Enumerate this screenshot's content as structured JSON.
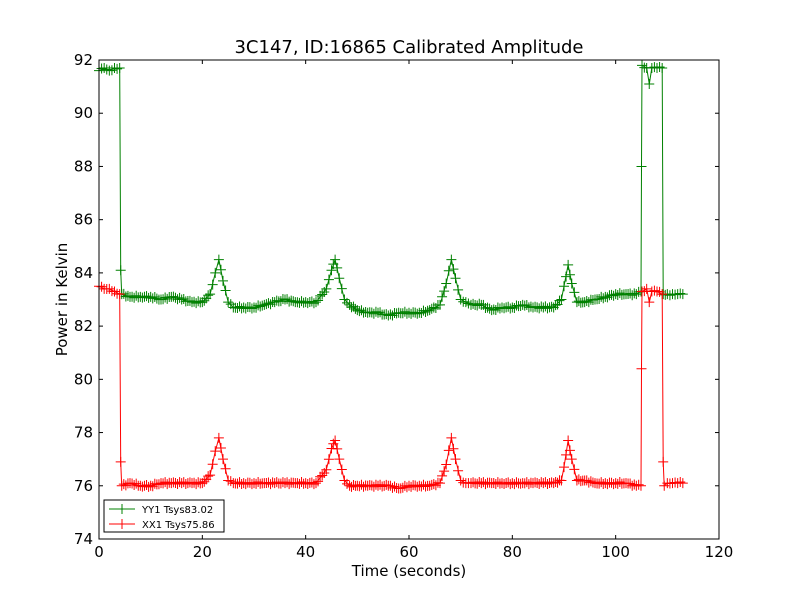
{
  "chart_data": {
    "type": "line",
    "title": "3C147, ID:16865 Calibrated Amplitude",
    "xlabel": "Time (seconds)",
    "ylabel": "Power in Kelvin",
    "xlim": [
      0,
      120
    ],
    "ylim": [
      74,
      92
    ],
    "x_ticks": [
      "0",
      "20",
      "40",
      "60",
      "80",
      "100",
      "120"
    ],
    "y_ticks": [
      "74",
      "76",
      "78",
      "80",
      "82",
      "84",
      "86",
      "88",
      "90",
      "92"
    ],
    "grid": false,
    "legend_position": "lower-left",
    "marker": "plus",
    "series": [
      {
        "name": "YY1 Tsys83.02",
        "color": "#008000",
        "points": [
          [
            0.0,
            91.6
          ],
          [
            1.0,
            91.7
          ],
          [
            2.0,
            91.6
          ],
          [
            3.0,
            91.7
          ],
          [
            4.0,
            91.7
          ],
          [
            4.2,
            84.1
          ],
          [
            4.4,
            83.2
          ],
          [
            6,
            83.1
          ],
          [
            8,
            83.1
          ],
          [
            10,
            83.1
          ],
          [
            12,
            83.0
          ],
          [
            14,
            83.1
          ],
          [
            16,
            83.0
          ],
          [
            18,
            82.9
          ],
          [
            20,
            82.9
          ],
          [
            21.5,
            83.2
          ],
          [
            22.5,
            84.0
          ],
          [
            23.2,
            84.5
          ],
          [
            24.0,
            83.7
          ],
          [
            25.0,
            82.9
          ],
          [
            26.0,
            82.7
          ],
          [
            28,
            82.7
          ],
          [
            30,
            82.7
          ],
          [
            32,
            82.8
          ],
          [
            34,
            82.9
          ],
          [
            36,
            83.0
          ],
          [
            38,
            82.9
          ],
          [
            40,
            82.9
          ],
          [
            42,
            82.9
          ],
          [
            44,
            83.4
          ],
          [
            45.0,
            84.1
          ],
          [
            45.7,
            84.5
          ],
          [
            46.5,
            83.8
          ],
          [
            47.5,
            83.0
          ],
          [
            48.5,
            82.8
          ],
          [
            50,
            82.6
          ],
          [
            52,
            82.5
          ],
          [
            54,
            82.5
          ],
          [
            56,
            82.4
          ],
          [
            58,
            82.5
          ],
          [
            60,
            82.5
          ],
          [
            62,
            82.5
          ],
          [
            64,
            82.6
          ],
          [
            66,
            82.8
          ],
          [
            67.2,
            83.6
          ],
          [
            68.2,
            84.5
          ],
          [
            69.0,
            83.8
          ],
          [
            70.0,
            83.0
          ],
          [
            71,
            82.9
          ],
          [
            72,
            82.8
          ],
          [
            74,
            82.8
          ],
          [
            76,
            82.6
          ],
          [
            78,
            82.7
          ],
          [
            80,
            82.7
          ],
          [
            82,
            82.8
          ],
          [
            84,
            82.7
          ],
          [
            86,
            82.7
          ],
          [
            88,
            82.7
          ],
          [
            89.5,
            83.0
          ],
          [
            90.0,
            83.5
          ],
          [
            90.8,
            84.3
          ],
          [
            91.5,
            83.6
          ],
          [
            92.5,
            82.9
          ],
          [
            94,
            82.9
          ],
          [
            96,
            83.0
          ],
          [
            98,
            83.1
          ],
          [
            100,
            83.2
          ],
          [
            102,
            83.2
          ],
          [
            104,
            83.2
          ],
          [
            104.9,
            83.3
          ],
          [
            105.0,
            88.0
          ],
          [
            105.1,
            91.8
          ],
          [
            106,
            91.7
          ],
          [
            106.5,
            91.1
          ],
          [
            107,
            91.7
          ],
          [
            108,
            91.7
          ],
          [
            109,
            91.7
          ],
          [
            109.2,
            83.2
          ],
          [
            110,
            83.2
          ],
          [
            111,
            83.2
          ],
          [
            112,
            83.2
          ],
          [
            113,
            83.2
          ]
        ]
      },
      {
        "name": "XX1 Tsys75.86",
        "color": "#ff0000",
        "points": [
          [
            0.0,
            83.5
          ],
          [
            1.0,
            83.4
          ],
          [
            2.0,
            83.4
          ],
          [
            3.0,
            83.3
          ],
          [
            4.0,
            83.2
          ],
          [
            4.2,
            76.9
          ],
          [
            4.4,
            76.0
          ],
          [
            6,
            76.1
          ],
          [
            8,
            76.0
          ],
          [
            10,
            76.0
          ],
          [
            12,
            76.1
          ],
          [
            14,
            76.1
          ],
          [
            16,
            76.1
          ],
          [
            18,
            76.1
          ],
          [
            20,
            76.1
          ],
          [
            21.5,
            76.4
          ],
          [
            22.5,
            77.3
          ],
          [
            23.2,
            77.8
          ],
          [
            24.0,
            77.0
          ],
          [
            25.0,
            76.2
          ],
          [
            26.0,
            76.1
          ],
          [
            28,
            76.1
          ],
          [
            30,
            76.1
          ],
          [
            32,
            76.1
          ],
          [
            34,
            76.1
          ],
          [
            36,
            76.1
          ],
          [
            38,
            76.1
          ],
          [
            40,
            76.1
          ],
          [
            42,
            76.1
          ],
          [
            44,
            76.6
          ],
          [
            45.0,
            77.4
          ],
          [
            45.7,
            77.7
          ],
          [
            46.5,
            77.0
          ],
          [
            47.5,
            76.2
          ],
          [
            48.5,
            76.0
          ],
          [
            50,
            76.0
          ],
          [
            52,
            76.0
          ],
          [
            54,
            76.0
          ],
          [
            56,
            76.0
          ],
          [
            58,
            75.9
          ],
          [
            60,
            76.0
          ],
          [
            62,
            76.0
          ],
          [
            64,
            76.0
          ],
          [
            66,
            76.1
          ],
          [
            67.2,
            76.8
          ],
          [
            68.2,
            77.8
          ],
          [
            69.0,
            77.0
          ],
          [
            70.0,
            76.2
          ],
          [
            71,
            76.1
          ],
          [
            72,
            76.1
          ],
          [
            74,
            76.1
          ],
          [
            76,
            76.1
          ],
          [
            78,
            76.1
          ],
          [
            80,
            76.1
          ],
          [
            82,
            76.1
          ],
          [
            84,
            76.1
          ],
          [
            86,
            76.1
          ],
          [
            88,
            76.1
          ],
          [
            89.5,
            76.2
          ],
          [
            90.0,
            76.7
          ],
          [
            90.8,
            77.7
          ],
          [
            91.5,
            77.0
          ],
          [
            92.5,
            76.2
          ],
          [
            94,
            76.2
          ],
          [
            96,
            76.1
          ],
          [
            98,
            76.1
          ],
          [
            100,
            76.1
          ],
          [
            102,
            76.1
          ],
          [
            104,
            76.0
          ],
          [
            104.9,
            76.0
          ],
          [
            105.0,
            80.4
          ],
          [
            105.1,
            83.3
          ],
          [
            106,
            83.4
          ],
          [
            106.5,
            82.9
          ],
          [
            107,
            83.3
          ],
          [
            108,
            83.3
          ],
          [
            109,
            83.2
          ],
          [
            109.2,
            76.9
          ],
          [
            109.4,
            76.0
          ],
          [
            110,
            76.1
          ],
          [
            111,
            76.1
          ],
          [
            112,
            76.1
          ],
          [
            113,
            76.1
          ]
        ]
      }
    ]
  }
}
